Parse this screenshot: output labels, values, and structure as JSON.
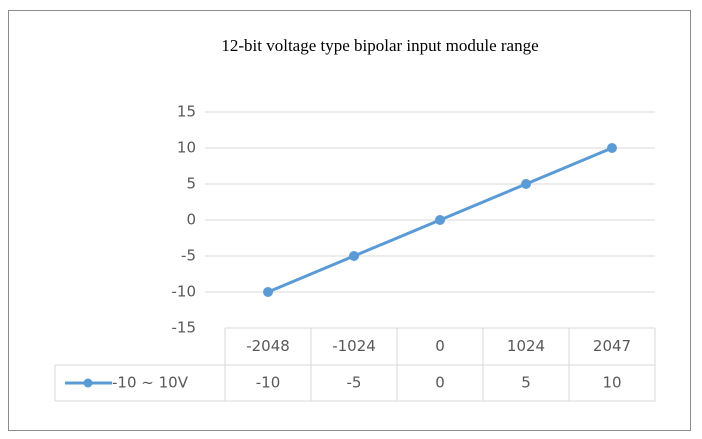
{
  "chart_data": {
    "type": "line",
    "title": "12-bit voltage type bipolar input module range",
    "categories": [
      "-2048",
      "-1024",
      "0",
      "1024",
      "2047"
    ],
    "series": [
      {
        "name": "-10 ~ 10V",
        "color": "#5b9bd5",
        "values": [
          -10,
          -5,
          0,
          5,
          10
        ]
      }
    ],
    "ylim": [
      -15,
      15
    ],
    "yticks": [
      -15,
      -10,
      -5,
      0,
      5,
      10,
      15
    ],
    "grid": true,
    "data_table": true
  }
}
